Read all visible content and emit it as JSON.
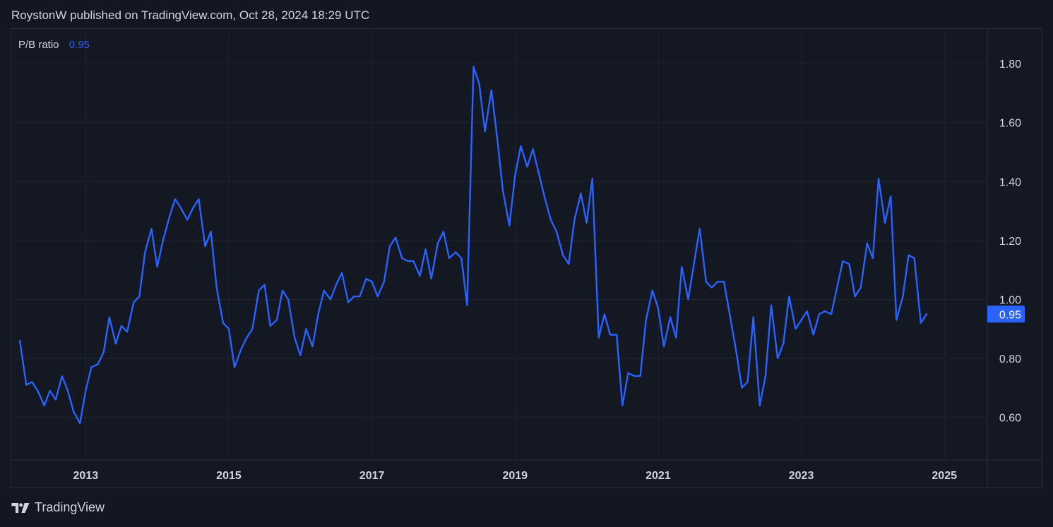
{
  "header": {
    "text": "RoystonW published on TradingView.com, Oct 28, 2024 18:29 UTC"
  },
  "footer": {
    "brand": "TradingView",
    "logo_icon": "tradingview-logo-icon"
  },
  "colors": {
    "background": "#131722",
    "grid": "#1f2330",
    "line": "#2962ff",
    "text": "#d1d4dc"
  },
  "chart_data": {
    "type": "line",
    "title": "",
    "xlabel": "",
    "ylabel": "",
    "legend": {
      "name": "P/B ratio",
      "value": "0.95"
    },
    "last_value_label": "0.95",
    "xlim": [
      2012.0,
      2025.6
    ],
    "ylim": [
      0.46,
      1.92
    ],
    "x_ticks": [
      {
        "value": 2013,
        "label": "2013"
      },
      {
        "value": 2015,
        "label": "2015"
      },
      {
        "value": 2017,
        "label": "2017"
      },
      {
        "value": 2019,
        "label": "2019"
      },
      {
        "value": 2021,
        "label": "2021"
      },
      {
        "value": 2023,
        "label": "2023"
      },
      {
        "value": 2025,
        "label": "2025"
      }
    ],
    "y_ticks": [
      {
        "value": 0.6,
        "label": "0.60"
      },
      {
        "value": 0.8,
        "label": "0.80"
      },
      {
        "value": 1.0,
        "label": "1.00"
      },
      {
        "value": 1.2,
        "label": "1.20"
      },
      {
        "value": 1.4,
        "label": "1.40"
      },
      {
        "value": 1.6,
        "label": "1.60"
      },
      {
        "value": 1.8,
        "label": "1.80"
      }
    ],
    "grid": true,
    "series": [
      {
        "name": "P/B ratio",
        "x": [
          2012.08,
          2012.17,
          2012.25,
          2012.33,
          2012.42,
          2012.5,
          2012.58,
          2012.67,
          2012.75,
          2012.83,
          2012.92,
          2013.0,
          2013.08,
          2013.17,
          2013.25,
          2013.33,
          2013.42,
          2013.5,
          2013.58,
          2013.67,
          2013.75,
          2013.83,
          2013.92,
          2014.0,
          2014.08,
          2014.17,
          2014.25,
          2014.33,
          2014.42,
          2014.5,
          2014.58,
          2014.67,
          2014.75,
          2014.83,
          2014.92,
          2015.0,
          2015.08,
          2015.17,
          2015.25,
          2015.33,
          2015.42,
          2015.5,
          2015.58,
          2015.67,
          2015.75,
          2015.83,
          2015.92,
          2016.0,
          2016.08,
          2016.17,
          2016.25,
          2016.33,
          2016.42,
          2016.5,
          2016.58,
          2016.67,
          2016.75,
          2016.83,
          2016.92,
          2017.0,
          2017.08,
          2017.17,
          2017.25,
          2017.33,
          2017.42,
          2017.5,
          2017.58,
          2017.67,
          2017.75,
          2017.83,
          2017.92,
          2018.0,
          2018.08,
          2018.17,
          2018.25,
          2018.33,
          2018.42,
          2018.5,
          2018.58,
          2018.67,
          2018.75,
          2018.83,
          2018.92,
          2019.0,
          2019.08,
          2019.17,
          2019.25,
          2019.33,
          2019.42,
          2019.5,
          2019.58,
          2019.67,
          2019.75,
          2019.83,
          2019.92,
          2020.0,
          2020.08,
          2020.17,
          2020.25,
          2020.33,
          2020.42,
          2020.5,
          2020.58,
          2020.67,
          2020.75,
          2020.83,
          2020.92,
          2021.0,
          2021.08,
          2021.17,
          2021.25,
          2021.33,
          2021.42,
          2021.5,
          2021.58,
          2021.67,
          2021.75,
          2021.83,
          2021.92,
          2022.0,
          2022.08,
          2022.17,
          2022.25,
          2022.33,
          2022.42,
          2022.5,
          2022.58,
          2022.67,
          2022.75,
          2022.83,
          2022.92,
          2023.0,
          2023.08,
          2023.17,
          2023.25,
          2023.33,
          2023.42,
          2023.5,
          2023.58,
          2023.67,
          2023.75,
          2023.83,
          2023.92,
          2024.0,
          2024.08,
          2024.17,
          2024.25,
          2024.33,
          2024.42,
          2024.5,
          2024.58,
          2024.67,
          2024.75
        ],
        "values": [
          0.86,
          0.71,
          0.72,
          0.69,
          0.64,
          0.69,
          0.66,
          0.74,
          0.69,
          0.62,
          0.58,
          0.69,
          0.77,
          0.78,
          0.82,
          0.94,
          0.85,
          0.91,
          0.89,
          0.99,
          1.01,
          1.16,
          1.24,
          1.11,
          1.2,
          1.28,
          1.34,
          1.31,
          1.27,
          1.31,
          1.34,
          1.18,
          1.23,
          1.04,
          0.92,
          0.9,
          0.77,
          0.83,
          0.87,
          0.9,
          1.03,
          1.05,
          0.91,
          0.93,
          1.03,
          1.0,
          0.87,
          0.81,
          0.9,
          0.84,
          0.95,
          1.03,
          1.0,
          1.05,
          1.09,
          0.99,
          1.01,
          1.01,
          1.07,
          1.06,
          1.01,
          1.06,
          1.18,
          1.21,
          1.14,
          1.13,
          1.13,
          1.08,
          1.17,
          1.07,
          1.19,
          1.23,
          1.14,
          1.16,
          1.14,
          0.98,
          1.79,
          1.73,
          1.57,
          1.71,
          1.55,
          1.37,
          1.25,
          1.42,
          1.52,
          1.45,
          1.51,
          1.43,
          1.34,
          1.27,
          1.23,
          1.15,
          1.12,
          1.27,
          1.36,
          1.26,
          1.41,
          0.87,
          0.95,
          0.88,
          0.88,
          0.64,
          0.75,
          0.74,
          0.74,
          0.93,
          1.03,
          0.97,
          0.84,
          0.94,
          0.87,
          1.11,
          1.0,
          1.12,
          1.24,
          1.06,
          1.04,
          1.06,
          1.06,
          0.95,
          0.84,
          0.7,
          0.72,
          0.94,
          0.64,
          0.74,
          0.98,
          0.8,
          0.85,
          1.01,
          0.9,
          0.93,
          0.96,
          0.88,
          0.95,
          0.96,
          0.95,
          1.04,
          1.13,
          1.12,
          1.01,
          1.04,
          1.19,
          1.14,
          1.41,
          1.26,
          1.35,
          0.93,
          1.01,
          1.15,
          1.14,
          0.92,
          0.95
        ]
      }
    ]
  }
}
